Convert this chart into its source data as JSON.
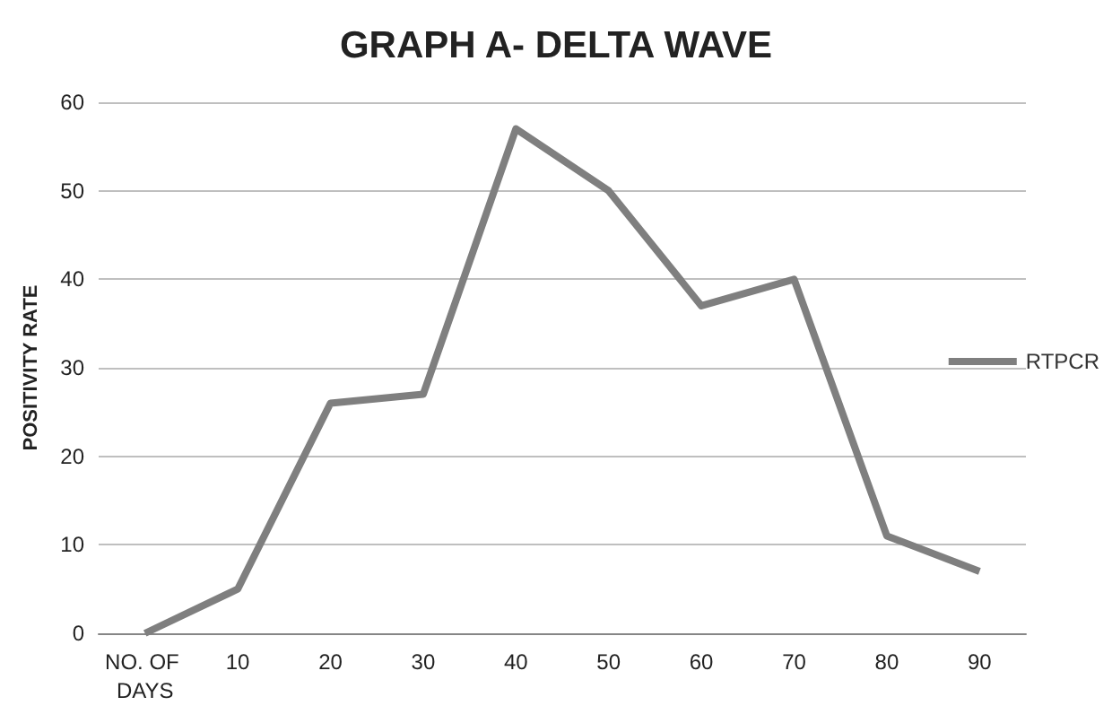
{
  "chart_data": {
    "type": "line",
    "title": "GRAPH A- DELTA WAVE",
    "ylabel": "POSITIVITY RATE",
    "categories": [
      "NO. OF DAYS",
      "10",
      "20",
      "30",
      "40",
      "50",
      "60",
      "70",
      "80",
      "90"
    ],
    "series": [
      {
        "name": "RTPCR",
        "color": "#7f7f7f",
        "values": [
          0,
          5,
          26,
          27,
          57,
          50,
          37,
          40,
          11,
          7
        ]
      }
    ],
    "ylim": [
      0,
      60
    ],
    "yticks": [
      0,
      10,
      20,
      30,
      40,
      50,
      60
    ],
    "grid": "y",
    "legend": "right",
    "marker": "none",
    "line_style": "solid"
  }
}
